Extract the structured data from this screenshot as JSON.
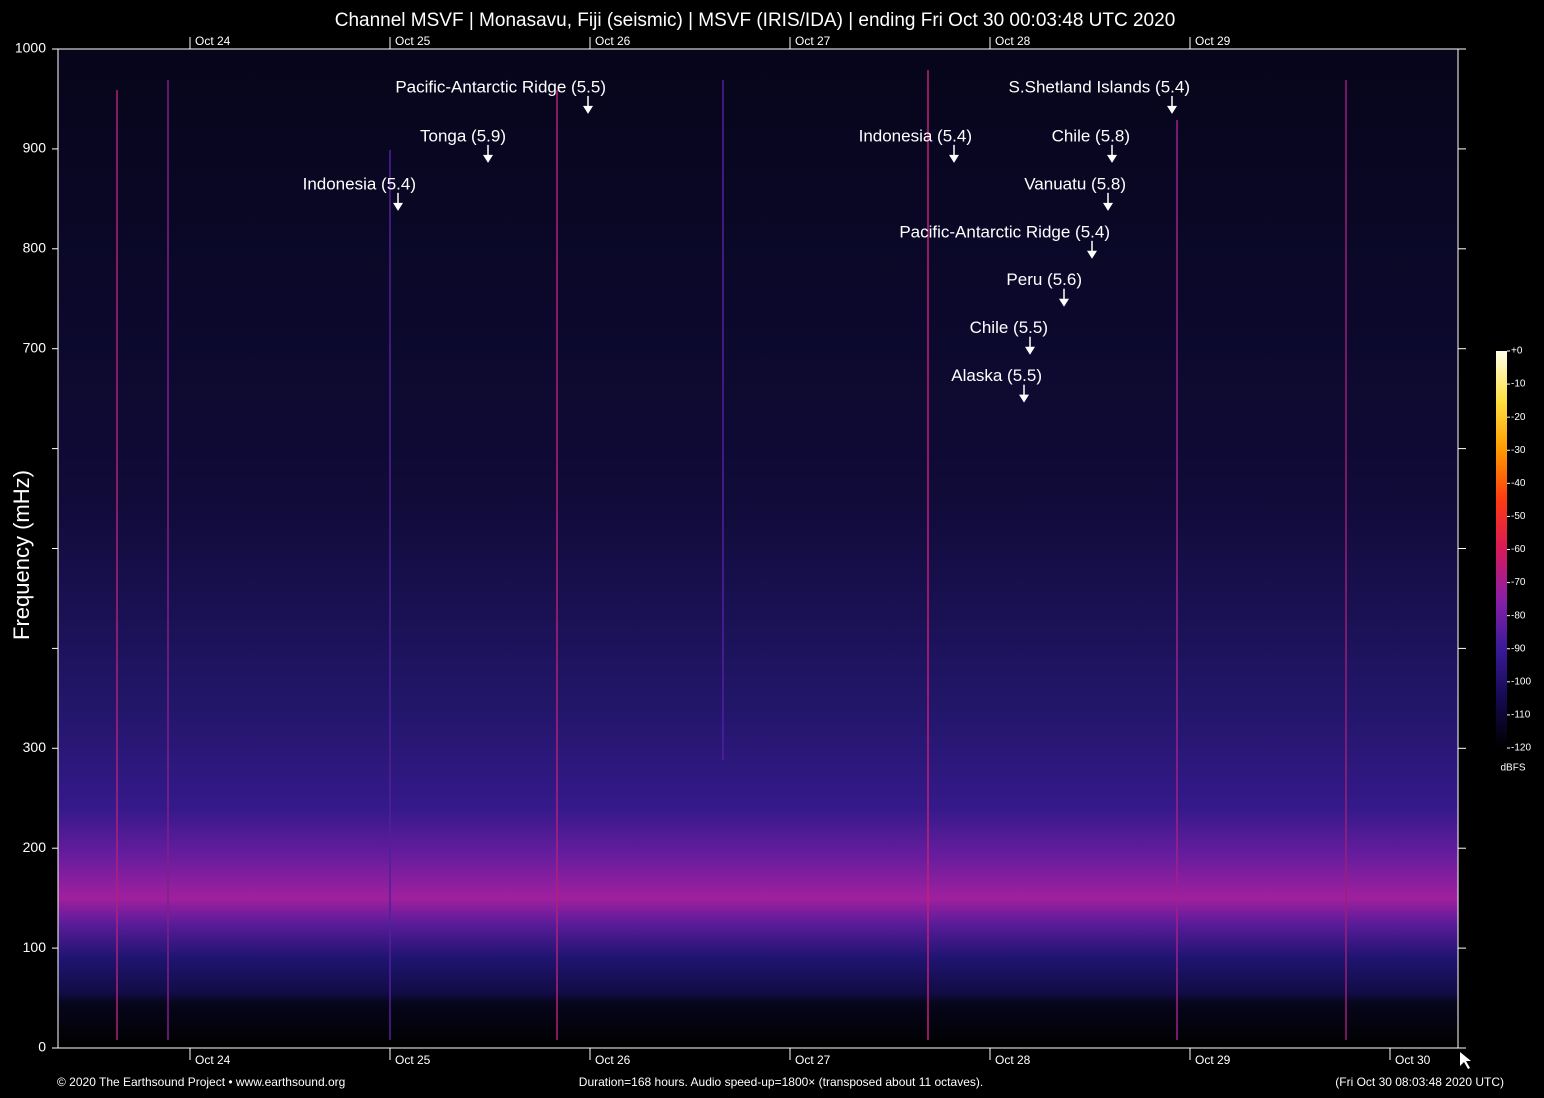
{
  "chart_data": {
    "type": "spectrogram",
    "title": "Channel MSVF | Monasavu, Fiji (seismic) | MSVF (IRIS/IDA) | ending Fri Oct 30 00:03:48 UTC 2020",
    "y_label": "Frequency (mHz)",
    "xlim": [
      23.34,
      30.34
    ],
    "xticks": [
      {
        "value": 24,
        "label": "Oct 24"
      },
      {
        "value": 25,
        "label": "Oct 25"
      },
      {
        "value": 26,
        "label": "Oct 26"
      },
      {
        "value": 27,
        "label": "Oct 27"
      },
      {
        "value": 28,
        "label": "Oct 28"
      },
      {
        "value": 29,
        "label": "Oct 29"
      },
      {
        "value": 30,
        "label": "Oct 30"
      }
    ],
    "top_xticks": [
      {
        "value": 24,
        "label": "Oct 24"
      },
      {
        "value": 25,
        "label": "Oct 25"
      },
      {
        "value": 26,
        "label": "Oct 26"
      },
      {
        "value": 27,
        "label": "Oct 27"
      },
      {
        "value": 28,
        "label": "Oct 28"
      },
      {
        "value": 29,
        "label": "Oct 29"
      }
    ],
    "ylim": [
      0,
      1000
    ],
    "yticks": [
      0,
      100,
      200,
      300,
      {
        "value": 400,
        "label": null
      },
      {
        "value": 500,
        "label": null
      },
      {
        "value": 600,
        "label": null
      },
      700,
      800,
      900,
      1000
    ],
    "annotations": [
      {
        "label": "Pacific-Antarctic Ridge (5.5)",
        "x": 25.99,
        "y": 935
      },
      {
        "label": "Tonga (5.9)",
        "x": 25.49,
        "y": 886
      },
      {
        "label": "Indonesia (5.4)",
        "x": 25.04,
        "y": 838
      },
      {
        "label": "Indonesia (5.4)",
        "x": 27.82,
        "y": 886
      },
      {
        "label": "S.Shetland Islands (5.4)",
        "x": 28.91,
        "y": 935
      },
      {
        "label": "Chile (5.8)",
        "x": 28.61,
        "y": 886
      },
      {
        "label": "Vanuatu (5.8)",
        "x": 28.59,
        "y": 838
      },
      {
        "label": "Pacific-Antarctic Ridge (5.4)",
        "x": 28.51,
        "y": 790
      },
      {
        "label": "Peru (5.6)",
        "x": 28.37,
        "y": 742
      },
      {
        "label": "Chile (5.5)",
        "x": 28.2,
        "y": 694
      },
      {
        "label": "Alaska (5.5)",
        "x": 28.17,
        "y": 646
      }
    ],
    "colorbar": {
      "label": "dBFS",
      "lim": [
        -120,
        0
      ],
      "ticks": [
        {
          "value": 0,
          "label": "+0"
        },
        -10,
        -20,
        -30,
        -40,
        -50,
        -60,
        -70,
        -80,
        -90,
        -100,
        -110,
        -120
      ],
      "colors": [
        "#000000",
        "#140a50",
        "#3a1a9a",
        "#8a1fa8",
        "#d8195a",
        "#ff3a10",
        "#ff9a00",
        "#ffe040",
        "#ffffe8"
      ]
    },
    "footer_left": "© 2020 The Earthsound Project • www.earthsound.org",
    "footer_center": "Duration=168 hours. Audio speed-up=1800× (transposed about 11 octaves).",
    "footer_right": "(Fri Oct 30 08:03:48 2020 UTC)"
  }
}
